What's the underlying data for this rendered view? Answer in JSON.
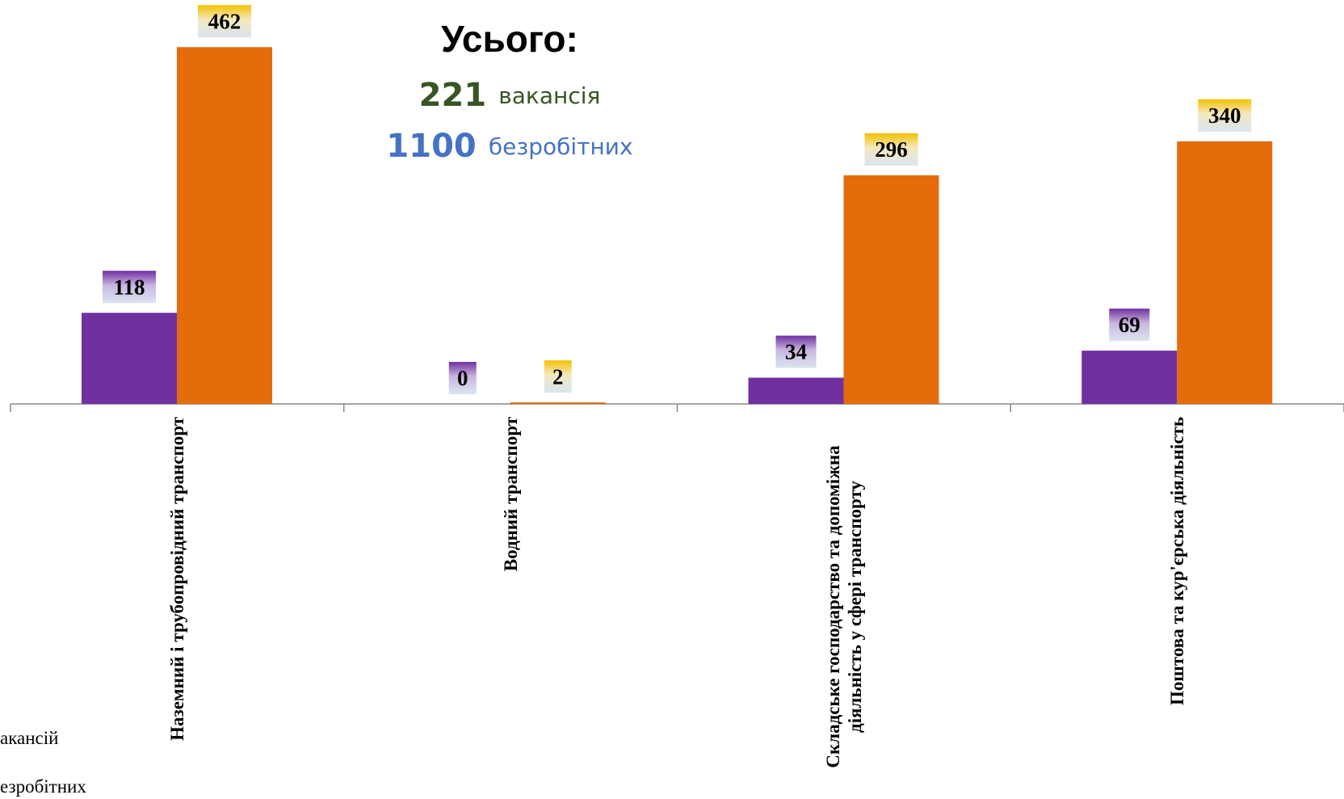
{
  "chart_data": {
    "type": "bar",
    "categories": [
      "Наземний і трубопровідний транспорт",
      "Водний транспорт",
      "Складське господарство та допоміжна діяльність у сфері транспорту",
      "Поштова та кур'єрська діяльність"
    ],
    "series": [
      {
        "name": "акансій",
        "color": "#7030a0",
        "values": [
          118,
          0,
          34,
          69
        ]
      },
      {
        "name": "езробітних",
        "color": "#e46c0a",
        "values": [
          462,
          2,
          296,
          340
        ]
      }
    ],
    "ylim": [
      0,
      500
    ],
    "annotations": {
      "title": "Усього:",
      "vacancies_value": "221",
      "vacancies_label": "вакансія",
      "unemployed_value": "1100",
      "unemployed_label": "безробітних"
    }
  }
}
